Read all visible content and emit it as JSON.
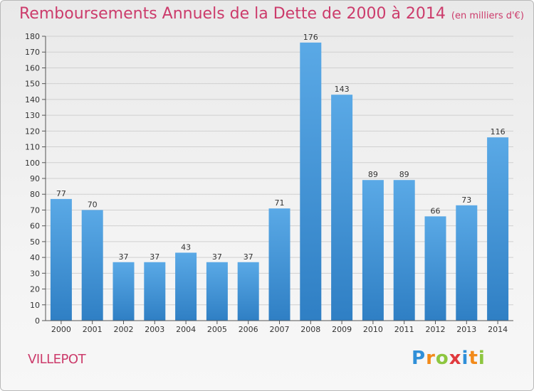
{
  "title": "Remboursements Annuels de la Dette de 2000 à 2014",
  "unit": "(en milliers d'€)",
  "town": "VILLEPOT",
  "brand": {
    "letters": [
      {
        "ch": "P",
        "color": "#2f8fd8"
      },
      {
        "ch": "r",
        "color": "#f28a1a"
      },
      {
        "ch": "o",
        "color": "#8dc63f"
      },
      {
        "ch": "x",
        "color": "#e03a3e"
      },
      {
        "ch": "i",
        "color": "#2f8fd8"
      },
      {
        "ch": "t",
        "color": "#f28a1a"
      },
      {
        "ch": "i",
        "color": "#8dc63f"
      }
    ]
  },
  "colors": {
    "bar_light": "#5aa9e6",
    "bar_dark": "#2f7fc4",
    "title": "#cc3b6b",
    "grid": "#d0d0d0"
  },
  "chart_data": {
    "type": "bar",
    "title": "Remboursements Annuels de la Dette de 2000 à 2014",
    "subtitle": "(en milliers d'€)",
    "categories": [
      "2000",
      "2001",
      "2002",
      "2003",
      "2004",
      "2005",
      "2006",
      "2007",
      "2008",
      "2009",
      "2010",
      "2011",
      "2012",
      "2013",
      "2014"
    ],
    "values": [
      77,
      70,
      37,
      37,
      43,
      37,
      37,
      71,
      176,
      143,
      89,
      89,
      66,
      73,
      116
    ],
    "ylim": [
      0,
      180
    ],
    "yticks": [
      0,
      10,
      20,
      30,
      40,
      50,
      60,
      70,
      80,
      90,
      100,
      110,
      120,
      130,
      140,
      150,
      160,
      170,
      180
    ],
    "grid": true,
    "data_labels": true
  }
}
